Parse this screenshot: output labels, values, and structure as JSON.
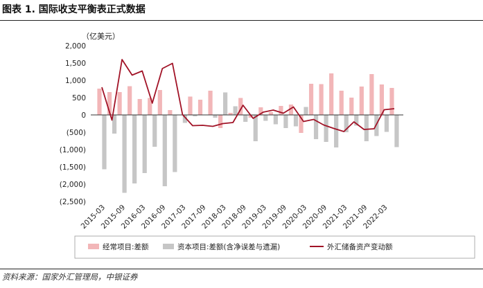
{
  "figure_title": "图表 1. 国际收支平衡表正式数据",
  "source_note": "资料来源：国家外汇管理局，中银证券",
  "colors": {
    "current": "#f2b6b8",
    "capital": "#c6c6c6",
    "reserve": "#a11226"
  },
  "chart_data": {
    "type": "bar",
    "ylabel": "（亿美元）",
    "ylim": [
      -2500,
      2000
    ],
    "yticks": [
      2000,
      1500,
      1000,
      500,
      0,
      -500,
      -1000,
      -1500,
      -2000,
      -2500
    ],
    "ytick_labels": [
      "2,000",
      "1,500",
      "1,000",
      "500",
      "0",
      "(500)",
      "(1,000)",
      "(1,500)",
      "(2,000)",
      "(2,500)"
    ],
    "x": [
      "2015-03",
      "2015-06",
      "2015-09",
      "2015-12",
      "2016-03",
      "2016-06",
      "2016-09",
      "2016-12",
      "2017-03",
      "2017-06",
      "2017-09",
      "2017-12",
      "2018-03",
      "2018-06",
      "2018-09",
      "2018-12",
      "2019-03",
      "2019-06",
      "2019-09",
      "2019-12",
      "2020-03",
      "2020-06",
      "2020-09",
      "2020-12",
      "2021-03",
      "2021-06",
      "2021-09",
      "2021-12",
      "2022-03",
      "2022-06"
    ],
    "xtick_labels": [
      "2015-03",
      "2015-09",
      "2016-03",
      "2016-09",
      "2017-03",
      "2017-09",
      "2018-03",
      "2018-09",
      "2019-03",
      "2019-09",
      "2020-03",
      "2020-09",
      "2021-03",
      "2021-09",
      "2022-03"
    ],
    "legend_position": "bottom",
    "series": [
      {
        "name": "经常项目:差额",
        "kind": "bar",
        "values": [
          760,
          660,
          660,
          830,
          460,
          490,
          720,
          140,
          -10,
          530,
          440,
          700,
          -380,
          60,
          490,
          -80,
          220,
          80,
          260,
          300,
          -520,
          900,
          890,
          1200,
          700,
          500,
          820,
          1180,
          880,
          780
        ]
      },
      {
        "name": "资本项目:差额(含净误差与遗漏)",
        "kind": "bar",
        "values": [
          -1570,
          -540,
          -2250,
          -1980,
          -1680,
          -920,
          -2060,
          -1650,
          -230,
          -40,
          -10,
          -80,
          650,
          250,
          -200,
          -760,
          -170,
          -270,
          -380,
          -330,
          230,
          -700,
          -780,
          -940,
          -500,
          -310,
          -760,
          -610,
          -490,
          -930
        ]
      },
      {
        "name": "外汇储备资产变动额",
        "kind": "line",
        "values": [
          800,
          -150,
          1600,
          1150,
          1270,
          340,
          1340,
          1490,
          10,
          -310,
          -300,
          -330,
          -250,
          -220,
          280,
          -100,
          80,
          140,
          50,
          230,
          -190,
          -130,
          -290,
          -390,
          -480,
          -200,
          -420,
          -400,
          150,
          180
        ]
      }
    ]
  }
}
